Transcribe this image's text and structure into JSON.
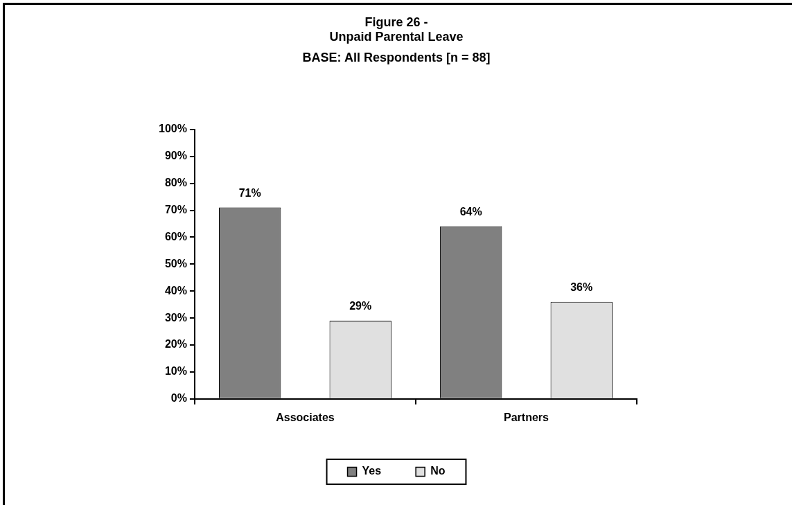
{
  "chart_data": {
    "type": "bar",
    "title": "Figure 26 -\nUnpaid Parental Leave",
    "subtitle": "BASE: All Respondents [n = 88]",
    "categories": [
      "Associates",
      "Partners"
    ],
    "series": [
      {
        "name": "Yes",
        "color": "#808080",
        "values": [
          71,
          64
        ],
        "value_labels": [
          "71%",
          "64%"
        ]
      },
      {
        "name": "No",
        "color": "#e0e0e0",
        "values": [
          29,
          36
        ],
        "value_labels": [
          "29%",
          "36%"
        ]
      }
    ],
    "ylim": [
      0,
      100
    ],
    "yticks": [
      {
        "value": 0,
        "label": "0%"
      },
      {
        "value": 10,
        "label": "10%"
      },
      {
        "value": 20,
        "label": "20%"
      },
      {
        "value": 30,
        "label": "30%"
      },
      {
        "value": 40,
        "label": "40%"
      },
      {
        "value": 50,
        "label": "50%"
      },
      {
        "value": 60,
        "label": "60%"
      },
      {
        "value": 70,
        "label": "70%"
      },
      {
        "value": 80,
        "label": "80%"
      },
      {
        "value": 90,
        "label": "90%"
      },
      {
        "value": 100,
        "label": "100%"
      }
    ],
    "grid": false,
    "legend": "bottom"
  }
}
